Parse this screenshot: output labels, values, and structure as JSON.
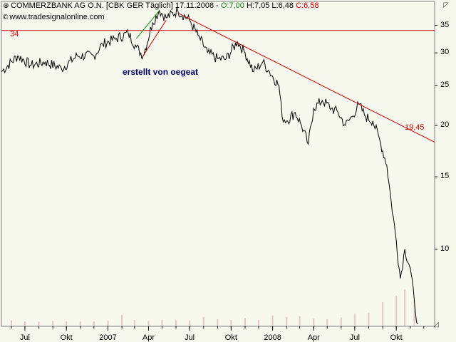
{
  "header": {
    "title": "COMMERZBANK AG O.N. [CBK GER  Täglich] 17.11.2008 - ",
    "open": "O:7,00",
    "hlc": " H:7,05 L:6,48 ",
    "close": "C:6,58",
    "source": "www.tradesignalonline.com"
  },
  "annotation": "erstellt von oegeat",
  "colors": {
    "background": "#f7f8ee",
    "price": "#000000",
    "trendline": "#cc0000",
    "channel": "#1a8f1a",
    "volume": "#e0c8c8"
  },
  "icons": {
    "symbol": "crosshair-icon",
    "copyright": "copyright-icon",
    "corner": "resize-icon"
  },
  "chart_data": {
    "type": "line",
    "scale": "log",
    "ylim": [
      6.5,
      40
    ],
    "y_ticks": [
      10,
      15,
      20,
      25,
      30,
      35
    ],
    "x_ticks": [
      "Jul",
      "Okt",
      "2007",
      "Apr",
      "Jul",
      "Okt",
      "2008",
      "Apr",
      "Jul",
      "Okt"
    ],
    "x_tick_dates": [
      "2006-07-01",
      "2006-10-01",
      "2007-01-01",
      "2007-04-01",
      "2007-07-01",
      "2007-10-01",
      "2008-01-01",
      "2008-04-01",
      "2008-07-01",
      "2008-10-01"
    ],
    "x_range": [
      "2006-05-10",
      "2008-12-25"
    ],
    "series": [
      {
        "points": [
          [
            "2006-05-10",
            27
          ],
          [
            "2006-06-15",
            29.5
          ],
          [
            "2006-07-15",
            28
          ],
          [
            "2006-08-15",
            28.5
          ],
          [
            "2006-09-20",
            27.5
          ],
          [
            "2006-10-25",
            29.5
          ],
          [
            "2006-12-01",
            29.5
          ],
          [
            "2006-12-20",
            31.5
          ],
          [
            "2007-01-20",
            32.5
          ],
          [
            "2007-02-15",
            33.5
          ],
          [
            "2007-03-05",
            31
          ],
          [
            "2007-03-20",
            29.5
          ],
          [
            "2007-04-10",
            35.5
          ],
          [
            "2007-04-25",
            38
          ],
          [
            "2007-05-10",
            36.5
          ],
          [
            "2007-06-05",
            38
          ],
          [
            "2007-07-01",
            36
          ],
          [
            "2007-07-20",
            33
          ],
          [
            "2007-08-10",
            30
          ],
          [
            "2007-09-01",
            29
          ],
          [
            "2007-09-20",
            29
          ],
          [
            "2007-10-15",
            32
          ],
          [
            "2007-11-01",
            30
          ],
          [
            "2007-11-20",
            27
          ],
          [
            "2007-12-10",
            28.5
          ],
          [
            "2007-12-25",
            27
          ],
          [
            "2008-01-15",
            25
          ],
          [
            "2008-01-22",
            21
          ],
          [
            "2008-02-01",
            20.5
          ],
          [
            "2008-02-20",
            21.5
          ],
          [
            "2008-03-05",
            20
          ],
          [
            "2008-03-20",
            18
          ],
          [
            "2008-04-01",
            22
          ],
          [
            "2008-04-20",
            23
          ],
          [
            "2008-05-10",
            22
          ],
          [
            "2008-05-25",
            21.5
          ],
          [
            "2008-06-10",
            20
          ],
          [
            "2008-06-25",
            21
          ],
          [
            "2008-07-10",
            22.5
          ],
          [
            "2008-07-25",
            21
          ],
          [
            "2008-08-10",
            20.5
          ],
          [
            "2008-08-25",
            18.5
          ],
          [
            "2008-09-10",
            16
          ],
          [
            "2008-09-20",
            13
          ],
          [
            "2008-10-01",
            10.5
          ],
          [
            "2008-10-10",
            8.5
          ],
          [
            "2008-10-20",
            10
          ],
          [
            "2008-11-01",
            9
          ],
          [
            "2008-11-10",
            7.5
          ],
          [
            "2008-11-17",
            6.58
          ]
        ]
      }
    ],
    "horizontal_line": {
      "value": 34,
      "label": "34"
    },
    "trendline": {
      "start": [
        "2007-06-05",
        37.5
      ],
      "end": [
        "2008-12-25",
        18.2
      ],
      "label": "19,45"
    },
    "channel": {
      "upper": [
        [
          "2007-03-05",
          32.5
        ],
        [
          "2007-04-25",
          38
        ]
      ],
      "lower": [
        [
          "2007-03-20",
          29.5
        ],
        [
          "2007-05-10",
          36
        ]
      ]
    },
    "volume": {
      "note": "relative daily volume, unitless",
      "points": [
        [
          "2006-06-01",
          0.12
        ],
        [
          "2006-07-01",
          0.1
        ],
        [
          "2006-08-01",
          0.09
        ],
        [
          "2006-09-01",
          0.11
        ],
        [
          "2006-10-01",
          0.1
        ],
        [
          "2006-11-01",
          0.09
        ],
        [
          "2006-12-01",
          0.1
        ],
        [
          "2007-01-01",
          0.12
        ],
        [
          "2007-02-01",
          0.25
        ],
        [
          "2007-03-01",
          0.13
        ],
        [
          "2007-04-01",
          0.11
        ],
        [
          "2007-05-01",
          0.14
        ],
        [
          "2007-06-01",
          0.12
        ],
        [
          "2007-07-01",
          0.12
        ],
        [
          "2007-08-01",
          0.2
        ],
        [
          "2007-09-01",
          0.15
        ],
        [
          "2007-10-01",
          0.13
        ],
        [
          "2007-11-01",
          0.18
        ],
        [
          "2007-12-01",
          0.14
        ],
        [
          "2008-01-01",
          0.24
        ],
        [
          "2008-02-01",
          0.2
        ],
        [
          "2008-03-01",
          0.22
        ],
        [
          "2008-04-01",
          0.16
        ],
        [
          "2008-05-01",
          0.15
        ],
        [
          "2008-06-01",
          0.19
        ],
        [
          "2008-07-01",
          0.28
        ],
        [
          "2008-08-01",
          0.3
        ],
        [
          "2008-09-01",
          0.55
        ],
        [
          "2008-10-01",
          0.7
        ],
        [
          "2008-10-20",
          0.85
        ],
        [
          "2008-11-10",
          0.6
        ]
      ]
    }
  }
}
